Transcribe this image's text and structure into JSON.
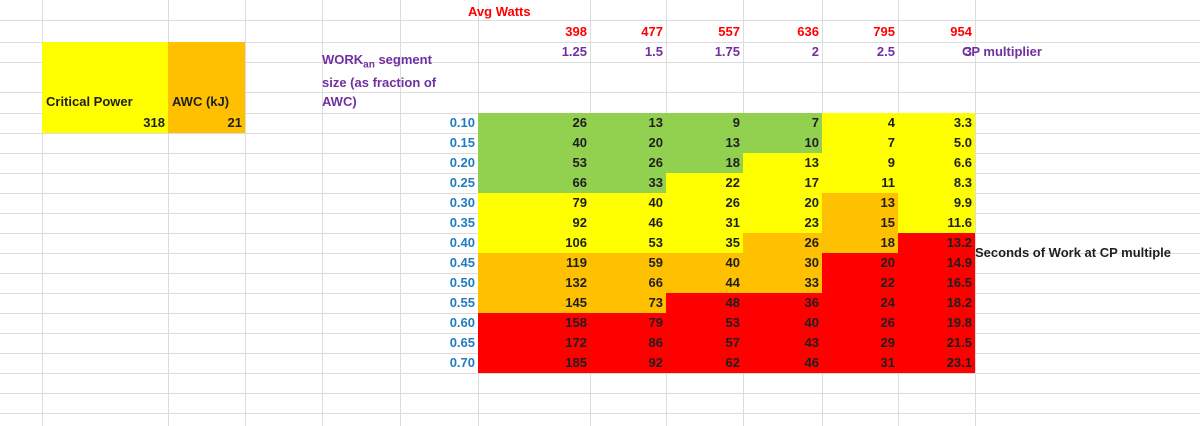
{
  "title": "Avg Watts",
  "critical_power": {
    "label": "Critical Power",
    "value": "318"
  },
  "awc": {
    "label": "AWC (kJ)",
    "value": "21"
  },
  "segment_label": {
    "line1": "WORK",
    "sub": "an",
    "line1_rest": " segment",
    "line2": "size (as fraction of",
    "line3": "AWC)"
  },
  "avg_watts": [
    "398",
    "477",
    "557",
    "636",
    "795",
    "954"
  ],
  "cp_multipliers": [
    "1.25",
    "1.5",
    "1.75",
    "2",
    "2.5",
    "3"
  ],
  "cp_multiplier_label": "CP multiplier",
  "seconds_label": "Seconds of Work at CP multiple",
  "fractions": [
    "0.10",
    "0.15",
    "0.20",
    "0.25",
    "0.30",
    "0.35",
    "0.40",
    "0.45",
    "0.50",
    "0.55",
    "0.60",
    "0.65",
    "0.70"
  ],
  "table": [
    [
      "26",
      "13",
      "9",
      "7",
      "4",
      "3.3"
    ],
    [
      "40",
      "20",
      "13",
      "10",
      "7",
      "5.0"
    ],
    [
      "53",
      "26",
      "18",
      "13",
      "9",
      "6.6"
    ],
    [
      "66",
      "33",
      "22",
      "17",
      "11",
      "8.3"
    ],
    [
      "79",
      "40",
      "26",
      "20",
      "13",
      "9.9"
    ],
    [
      "92",
      "46",
      "31",
      "23",
      "15",
      "11.6"
    ],
    [
      "106",
      "53",
      "35",
      "26",
      "18",
      "13.2"
    ],
    [
      "119",
      "59",
      "40",
      "30",
      "20",
      "14.9"
    ],
    [
      "132",
      "66",
      "44",
      "33",
      "22",
      "16.5"
    ],
    [
      "145",
      "73",
      "48",
      "36",
      "24",
      "18.2"
    ],
    [
      "158",
      "79",
      "53",
      "40",
      "26",
      "19.8"
    ],
    [
      "172",
      "86",
      "57",
      "43",
      "29",
      "21.5"
    ],
    [
      "185",
      "92",
      "62",
      "46",
      "31",
      "23.1"
    ]
  ],
  "zones": [
    [
      "g",
      "g",
      "g",
      "g",
      "y",
      "y"
    ],
    [
      "g",
      "g",
      "g",
      "g",
      "y",
      "y"
    ],
    [
      "g",
      "g",
      "g",
      "y",
      "y",
      "y"
    ],
    [
      "g",
      "g",
      "y",
      "y",
      "y",
      "y"
    ],
    [
      "y",
      "y",
      "y",
      "y",
      "o",
      "y"
    ],
    [
      "y",
      "y",
      "y",
      "y",
      "o",
      "y"
    ],
    [
      "y",
      "y",
      "y",
      "o",
      "o",
      "r"
    ],
    [
      "o",
      "o",
      "o",
      "o",
      "r",
      "r"
    ],
    [
      "o",
      "o",
      "o",
      "o",
      "r",
      "r"
    ],
    [
      "o",
      "o",
      "r",
      "r",
      "r",
      "r"
    ],
    [
      "r",
      "r",
      "r",
      "r",
      "r",
      "r"
    ],
    [
      "r",
      "r",
      "r",
      "r",
      "r",
      "r"
    ],
    [
      "r",
      "r",
      "r",
      "r",
      "r",
      "r"
    ]
  ],
  "colors": {
    "g": "#92d050",
    "y": "#ffff00",
    "o": "#ffc000",
    "r": "#ff0000"
  }
}
